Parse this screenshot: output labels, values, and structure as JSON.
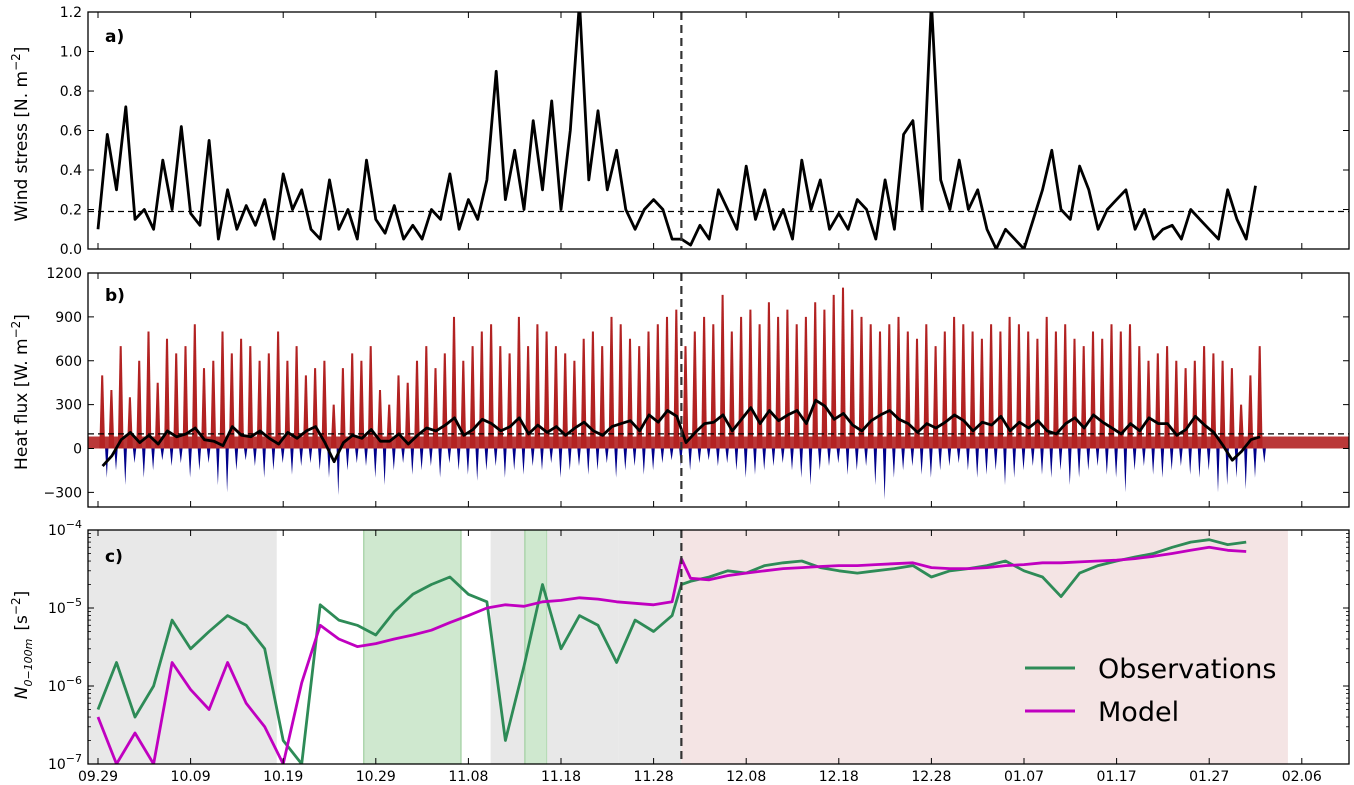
{
  "colors": {
    "wind_line": "#000000",
    "heat_pos": "#b22222",
    "heat_neg": "#00008b",
    "heat_mean": "#000000",
    "obs": "#2e8b57",
    "model": "#c000c0",
    "shade_grey": "#e8e8e8",
    "shade_green": "#cfe8cf",
    "shade_pink": "#f4e4e4"
  },
  "chart_data": [
    {
      "type": "line",
      "panel_label": "a)",
      "ylabel": "Wind stress [N. m",
      "ylabel_sup": "−2",
      "ylabel_close": "]",
      "ylim": [
        0,
        1.2
      ],
      "yticks": [
        "0.0",
        "0.2",
        "0.4",
        "0.6",
        "0.8",
        "1.0",
        "1.2"
      ],
      "ytick_values": [
        0,
        0.2,
        0.4,
        0.6,
        0.8,
        1.0,
        1.2
      ],
      "reference_line": 0.19,
      "vertical_marker_day": 63,
      "x_day": [
        0,
        1,
        2,
        3,
        4,
        5,
        6,
        7,
        8,
        9,
        10,
        11,
        12,
        13,
        14,
        15,
        16,
        17,
        18,
        19,
        20,
        21,
        22,
        23,
        24,
        25,
        26,
        27,
        28,
        29,
        30,
        31,
        32,
        33,
        34,
        35,
        36,
        37,
        38,
        39,
        40,
        41,
        42,
        43,
        44,
        45,
        46,
        47,
        48,
        49,
        50,
        51,
        52,
        53,
        54,
        55,
        56,
        57,
        58,
        59,
        60,
        61,
        62,
        63,
        64,
        65,
        66,
        67,
        68,
        69,
        70,
        71,
        72,
        73,
        74,
        75,
        76,
        77,
        78,
        79,
        80,
        81,
        82,
        83,
        84,
        85,
        86,
        87,
        88,
        89,
        90,
        91,
        92,
        93,
        94,
        95,
        96,
        97,
        98,
        99,
        100,
        101,
        102,
        103,
        104,
        105,
        106,
        107,
        108,
        109,
        110,
        111,
        112,
        113,
        114,
        115,
        116,
        117,
        118,
        119,
        120,
        121,
        122,
        123,
        124,
        125
      ],
      "values": [
        0.1,
        0.58,
        0.3,
        0.72,
        0.15,
        0.2,
        0.1,
        0.45,
        0.2,
        0.62,
        0.18,
        0.12,
        0.55,
        0.05,
        0.3,
        0.1,
        0.22,
        0.12,
        0.25,
        0.05,
        0.38,
        0.2,
        0.3,
        0.1,
        0.05,
        0.35,
        0.1,
        0.2,
        0.05,
        0.45,
        0.15,
        0.08,
        0.22,
        0.05,
        0.12,
        0.05,
        0.2,
        0.15,
        0.38,
        0.1,
        0.25,
        0.15,
        0.35,
        0.9,
        0.25,
        0.5,
        0.2,
        0.65,
        0.3,
        0.75,
        0.2,
        0.6,
        1.25,
        0.35,
        0.7,
        0.3,
        0.5,
        0.2,
        0.1,
        0.2,
        0.25,
        0.2,
        0.05,
        0.05,
        0.02,
        0.12,
        0.05,
        0.3,
        0.2,
        0.1,
        0.42,
        0.15,
        0.3,
        0.1,
        0.2,
        0.05,
        0.45,
        0.2,
        0.35,
        0.1,
        0.18,
        0.1,
        0.25,
        0.2,
        0.05,
        0.35,
        0.1,
        0.58,
        0.65,
        0.2,
        1.25,
        0.35,
        0.2,
        0.45,
        0.2,
        0.3,
        0.1,
        0.0,
        0.1,
        0.05,
        0.0,
        0.15,
        0.3,
        0.5,
        0.2,
        0.15,
        0.42,
        0.3,
        0.1,
        0.2,
        0.25,
        0.3,
        0.1,
        0.2,
        0.05,
        0.1,
        0.12,
        0.05,
        0.2,
        0.15,
        0.1,
        0.05,
        0.3,
        0.15,
        0.05,
        0.32
      ]
    },
    {
      "type": "area",
      "panel_label": "b)",
      "ylabel": "Heat flux [W. m",
      "ylabel_sup": "−2",
      "ylabel_close": "]",
      "ylim": [
        -400,
        1200
      ],
      "yticks": [
        "−300",
        "0",
        "300",
        "600",
        "900",
        "1200"
      ],
      "ytick_values": [
        -300,
        0,
        300,
        600,
        900,
        1200
      ],
      "reference_line": 100,
      "vertical_marker_day": 63,
      "x_day": [
        0,
        1,
        2,
        3,
        4,
        5,
        6,
        7,
        8,
        9,
        10,
        11,
        12,
        13,
        14,
        15,
        16,
        17,
        18,
        19,
        20,
        21,
        22,
        23,
        24,
        25,
        26,
        27,
        28,
        29,
        30,
        31,
        32,
        33,
        34,
        35,
        36,
        37,
        38,
        39,
        40,
        41,
        42,
        43,
        44,
        45,
        46,
        47,
        48,
        49,
        50,
        51,
        52,
        53,
        54,
        55,
        56,
        57,
        58,
        59,
        60,
        61,
        62,
        63,
        64,
        65,
        66,
        67,
        68,
        69,
        70,
        71,
        72,
        73,
        74,
        75,
        76,
        77,
        78,
        79,
        80,
        81,
        82,
        83,
        84,
        85,
        86,
        87,
        88,
        89,
        90,
        91,
        92,
        93,
        94,
        95,
        96,
        97,
        98,
        99,
        100,
        101,
        102,
        103,
        104,
        105,
        106,
        107,
        108,
        109,
        110,
        111,
        112,
        113,
        114,
        115,
        116,
        117,
        118,
        119,
        120,
        121,
        122,
        123,
        124,
        125
      ],
      "daily_max": [
        500,
        400,
        700,
        350,
        600,
        800,
        450,
        750,
        650,
        700,
        850,
        550,
        600,
        800,
        650,
        750,
        700,
        600,
        650,
        800,
        600,
        700,
        500,
        550,
        600,
        300,
        550,
        650,
        600,
        700,
        400,
        300,
        500,
        450,
        600,
        700,
        550,
        650,
        900,
        600,
        700,
        800,
        850,
        700,
        650,
        900,
        700,
        850,
        800,
        700,
        650,
        600,
        750,
        800,
        700,
        900,
        850,
        750,
        700,
        800,
        850,
        900,
        950,
        700,
        800,
        900,
        850,
        1050,
        800,
        900,
        950,
        850,
        1000,
        900,
        950,
        850,
        900,
        1000,
        950,
        1050,
        1100,
        950,
        900,
        850,
        800,
        850,
        900,
        800,
        750,
        850,
        700,
        800,
        900,
        850,
        800,
        750,
        850,
        800,
        900,
        850,
        800,
        750,
        900,
        800,
        850,
        750,
        700,
        800,
        750,
        850,
        800,
        850,
        700,
        600,
        650,
        700,
        600,
        550,
        600,
        700,
        650,
        600,
        550,
        300,
        500,
        700
      ],
      "daily_min": [
        -200,
        -150,
        -250,
        -100,
        -200,
        -150,
        -80,
        -120,
        -100,
        -200,
        -150,
        -100,
        -250,
        -300,
        -150,
        -80,
        -120,
        -200,
        -150,
        -100,
        -180,
        -120,
        -100,
        -150,
        -200,
        -320,
        -150,
        -100,
        -120,
        -200,
        -250,
        -150,
        -100,
        -180,
        -150,
        -120,
        -200,
        -100,
        -150,
        -180,
        -220,
        -150,
        -120,
        -200,
        -150,
        -180,
        -120,
        -150,
        -100,
        -200,
        -150,
        -120,
        -180,
        -150,
        -100,
        -200,
        -150,
        -120,
        -180,
        -150,
        -100,
        -80,
        -120,
        -150,
        -100,
        -80,
        -120,
        -100,
        -150,
        -200,
        -180,
        -150,
        -120,
        -100,
        -150,
        -200,
        -250,
        -150,
        -120,
        -100,
        -180,
        -150,
        -120,
        -250,
        -350,
        -200,
        -150,
        -120,
        -180,
        -200,
        -150,
        -120,
        -100,
        -150,
        -200,
        -180,
        -150,
        -250,
        -200,
        -150,
        -120,
        -180,
        -200,
        -150,
        -250,
        -200,
        -150,
        -120,
        -180,
        -200,
        -300,
        -150,
        -120,
        -180,
        -200,
        -150,
        -120,
        -180,
        -200,
        -150,
        -300,
        -250,
        -200,
        -280,
        -200,
        -100
      ],
      "daily_mean": [
        -120,
        -50,
        60,
        110,
        40,
        90,
        30,
        120,
        80,
        100,
        140,
        60,
        50,
        20,
        150,
        90,
        80,
        120,
        70,
        30,
        110,
        70,
        120,
        150,
        40,
        -90,
        40,
        90,
        70,
        130,
        50,
        50,
        100,
        30,
        90,
        140,
        120,
        160,
        210,
        90,
        130,
        200,
        170,
        120,
        150,
        210,
        100,
        160,
        110,
        150,
        90,
        140,
        180,
        120,
        90,
        150,
        170,
        190,
        120,
        230,
        180,
        260,
        220,
        40,
        110,
        170,
        180,
        230,
        120,
        200,
        280,
        170,
        260,
        190,
        230,
        260,
        170,
        330,
        290,
        200,
        240,
        160,
        120,
        190,
        230,
        260,
        200,
        170,
        110,
        170,
        140,
        180,
        230,
        190,
        120,
        180,
        160,
        220,
        120,
        180,
        140,
        190,
        120,
        100,
        170,
        210,
        140,
        230,
        180,
        140,
        100,
        170,
        120,
        210,
        170,
        170,
        90,
        130,
        220,
        160,
        110,
        20,
        -80,
        -20,
        60,
        80
      ]
    },
    {
      "type": "line",
      "panel_label": "c)",
      "ylabel_main": "N",
      "ylabel_sub": "0−100m",
      "ylabel_unit": "[s",
      "ylabel_sup": "−2",
      "ylabel_close": "]",
      "yscale": "log",
      "ylim": [
        1e-07,
        0.0001
      ],
      "yticks_base": [
        "10",
        "10",
        "10",
        "10"
      ],
      "yticks_exp": [
        "−7",
        "−6",
        "−5",
        "−4"
      ],
      "ytick_values": [
        1e-07,
        1e-06,
        1e-05,
        0.0001
      ],
      "vertical_marker_day": 63,
      "shaded_regions": [
        {
          "x0": -3.3,
          "x1": 19.3,
          "color": "grey"
        },
        {
          "x0": 28.7,
          "x1": 39.2,
          "color": "green"
        },
        {
          "x0": 42.4,
          "x1": 46.1,
          "color": "grey"
        },
        {
          "x0": 46.1,
          "x1": 48.5,
          "color": "green"
        },
        {
          "x0": 48.5,
          "x1": 56.2,
          "color": "grey"
        },
        {
          "x0": 56.2,
          "x1": 63.0,
          "color": "grey"
        },
        {
          "x0": 63.0,
          "x1": 128.5,
          "color": "pink"
        }
      ],
      "x_day": [
        0,
        2,
        4,
        6,
        8,
        10,
        12,
        14,
        16,
        18,
        20,
        22,
        24,
        26,
        28,
        30,
        32,
        34,
        36,
        38,
        40,
        42,
        44,
        46,
        48,
        50,
        52,
        54,
        56,
        58,
        60,
        62,
        63,
        64,
        66,
        68,
        70,
        72,
        74,
        76,
        78,
        80,
        82,
        84,
        86,
        88,
        90,
        92,
        94,
        96,
        98,
        100,
        102,
        104,
        106,
        108,
        110,
        112,
        114,
        116,
        118,
        120,
        122,
        124
      ],
      "series": [
        {
          "name": "Observations",
          "values": [
            5e-07,
            2e-06,
            4e-07,
            1e-06,
            7e-06,
            3e-06,
            5e-06,
            8e-06,
            6e-06,
            3e-06,
            2e-07,
            1e-07,
            1.1e-05,
            7e-06,
            6e-06,
            4.5e-06,
            9e-06,
            1.5e-05,
            2e-05,
            2.5e-05,
            1.5e-05,
            1.2e-05,
            2e-07,
            1.8e-06,
            2e-05,
            3e-06,
            8e-06,
            6e-06,
            2e-06,
            7e-06,
            5e-06,
            8e-06,
            2e-05,
            2.2e-05,
            2.5e-05,
            3e-05,
            2.8e-05,
            3.5e-05,
            3.8e-05,
            4e-05,
            3.3e-05,
            3e-05,
            2.8e-05,
            3e-05,
            3.2e-05,
            3.5e-05,
            2.5e-05,
            3e-05,
            3.2e-05,
            3.5e-05,
            4e-05,
            3e-05,
            2.5e-05,
            1.4e-05,
            2.8e-05,
            3.5e-05,
            4e-05,
            4.5e-05,
            5e-05,
            6e-05,
            7e-05,
            7.5e-05,
            6.5e-05,
            7e-05
          ]
        },
        {
          "name": "Model",
          "values": [
            4e-07,
            1e-07,
            2.5e-07,
            1e-07,
            2e-06,
            9e-07,
            5e-07,
            2e-06,
            6e-07,
            3e-07,
            1e-07,
            1.1e-06,
            6e-06,
            4e-06,
            3.2e-06,
            3.5e-06,
            4e-06,
            4.5e-06,
            5.2e-06,
            6.5e-06,
            8e-06,
            1e-05,
            1.1e-05,
            1.05e-05,
            1.2e-05,
            1.25e-05,
            1.35e-05,
            1.3e-05,
            1.2e-05,
            1.15e-05,
            1.1e-05,
            1.2e-05,
            4.3e-05,
            2.4e-05,
            2.3e-05,
            2.6e-05,
            2.8e-05,
            3e-05,
            3.2e-05,
            3.3e-05,
            3.4e-05,
            3.5e-05,
            3.5e-05,
            3.6e-05,
            3.7e-05,
            3.8e-05,
            3.3e-05,
            3.2e-05,
            3.2e-05,
            3.3e-05,
            3.5e-05,
            3.6e-05,
            3.8e-05,
            3.8e-05,
            3.9e-05,
            4e-05,
            4.1e-05,
            4.3e-05,
            4.6e-05,
            5e-05,
            5.5e-05,
            6e-05,
            5.5e-05,
            5.3e-05
          ]
        }
      ]
    }
  ],
  "x_axis": {
    "tick_labels": [
      "09.29",
      "10.09",
      "10.19",
      "10.29",
      "11.08",
      "11.18",
      "11.28",
      "12.08",
      "12.18",
      "12.28",
      "01.07",
      "01.17",
      "01.27",
      "02.06"
    ],
    "tick_days": [
      0,
      10,
      20,
      30,
      40,
      50,
      60,
      70,
      80,
      90,
      100,
      110,
      120,
      130
    ]
  },
  "legend": {
    "position": "lower-right",
    "items": [
      "Observations",
      "Model"
    ]
  }
}
